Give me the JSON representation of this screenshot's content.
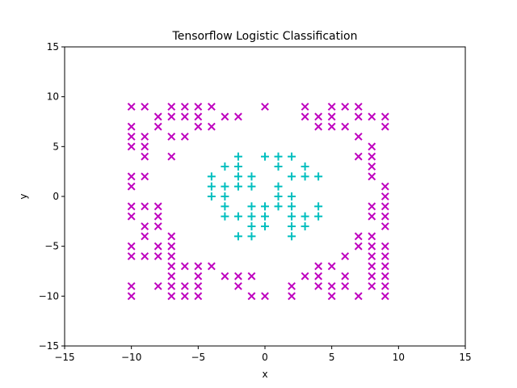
{
  "chart_data": {
    "type": "scatter",
    "title": "Tensorflow Logistic Classification",
    "xlabel": "x",
    "ylabel": "y",
    "xlim": [
      -15,
      15
    ],
    "ylim": [
      -15,
      15
    ],
    "xticks": [
      -15,
      -10,
      -5,
      0,
      5,
      10,
      15
    ],
    "yticks": [
      -15,
      -10,
      -5,
      0,
      5,
      10,
      15
    ],
    "xtick_labels": [
      "−15",
      "−10",
      "−5",
      "0",
      "5",
      "10",
      "15"
    ],
    "ytick_labels": [
      "−15",
      "−10",
      "−5",
      "0",
      "5",
      "10",
      "15"
    ],
    "grid": false,
    "series": [
      {
        "marker": "cross",
        "color": "#bf00bf",
        "points": [
          [
            -10,
            9
          ],
          [
            -9,
            9
          ],
          [
            -7,
            9
          ],
          [
            -6,
            9
          ],
          [
            -5,
            9
          ],
          [
            -4,
            9
          ],
          [
            0,
            9
          ],
          [
            3,
            9
          ],
          [
            5,
            9
          ],
          [
            6,
            9
          ],
          [
            7,
            9
          ],
          [
            -8,
            8
          ],
          [
            -7,
            8
          ],
          [
            -6,
            8
          ],
          [
            -5,
            8
          ],
          [
            -3,
            8
          ],
          [
            -2,
            8
          ],
          [
            3,
            8
          ],
          [
            4,
            8
          ],
          [
            5,
            8
          ],
          [
            7,
            8
          ],
          [
            8,
            8
          ],
          [
            9,
            8
          ],
          [
            -10,
            7
          ],
          [
            -8,
            7
          ],
          [
            -5,
            7
          ],
          [
            -4,
            7
          ],
          [
            4,
            7
          ],
          [
            5,
            7
          ],
          [
            6,
            7
          ],
          [
            9,
            7
          ],
          [
            -10,
            6
          ],
          [
            -9,
            6
          ],
          [
            -7,
            6
          ],
          [
            -6,
            6
          ],
          [
            7,
            6
          ],
          [
            -10,
            5
          ],
          [
            -9,
            5
          ],
          [
            8,
            5
          ],
          [
            -9,
            4
          ],
          [
            -7,
            4
          ],
          [
            7,
            4
          ],
          [
            8,
            4
          ],
          [
            8,
            3
          ],
          [
            8,
            2
          ],
          [
            -10,
            2
          ],
          [
            -9,
            2
          ],
          [
            -10,
            1
          ],
          [
            9,
            1
          ],
          [
            9,
            0
          ],
          [
            -10,
            -1
          ],
          [
            -9,
            -1
          ],
          [
            -8,
            -1
          ],
          [
            8,
            -1
          ],
          [
            9,
            -1
          ],
          [
            -10,
            -2
          ],
          [
            -8,
            -2
          ],
          [
            8,
            -2
          ],
          [
            9,
            -2
          ],
          [
            -9,
            -3
          ],
          [
            -8,
            -3
          ],
          [
            9,
            -3
          ],
          [
            -9,
            -4
          ],
          [
            -7,
            -4
          ],
          [
            7,
            -4
          ],
          [
            8,
            -4
          ],
          [
            -10,
            -5
          ],
          [
            -8,
            -5
          ],
          [
            -7,
            -5
          ],
          [
            7,
            -5
          ],
          [
            8,
            -5
          ],
          [
            9,
            -5
          ],
          [
            -10,
            -6
          ],
          [
            -9,
            -6
          ],
          [
            -8,
            -6
          ],
          [
            -7,
            -6
          ],
          [
            6,
            -6
          ],
          [
            8,
            -6
          ],
          [
            9,
            -6
          ],
          [
            -7,
            -7
          ],
          [
            -6,
            -7
          ],
          [
            -5,
            -7
          ],
          [
            -4,
            -7
          ],
          [
            4,
            -7
          ],
          [
            5,
            -7
          ],
          [
            8,
            -7
          ],
          [
            9,
            -7
          ],
          [
            -7,
            -8
          ],
          [
            -5,
            -8
          ],
          [
            -3,
            -8
          ],
          [
            -2,
            -8
          ],
          [
            -1,
            -8
          ],
          [
            3,
            -8
          ],
          [
            4,
            -8
          ],
          [
            6,
            -8
          ],
          [
            8,
            -8
          ],
          [
            9,
            -8
          ],
          [
            -10,
            -9
          ],
          [
            -8,
            -9
          ],
          [
            -7,
            -9
          ],
          [
            -6,
            -9
          ],
          [
            -5,
            -9
          ],
          [
            -2,
            -9
          ],
          [
            2,
            -9
          ],
          [
            4,
            -9
          ],
          [
            5,
            -9
          ],
          [
            6,
            -9
          ],
          [
            8,
            -9
          ],
          [
            9,
            -9
          ],
          [
            -10,
            -10
          ],
          [
            -7,
            -10
          ],
          [
            -6,
            -10
          ],
          [
            -5,
            -10
          ],
          [
            -1,
            -10
          ],
          [
            0,
            -10
          ],
          [
            2,
            -10
          ],
          [
            5,
            -10
          ],
          [
            7,
            -10
          ],
          [
            9,
            -10
          ]
        ]
      },
      {
        "marker": "plus",
        "color": "#00bfbf",
        "points": [
          [
            -2,
            4
          ],
          [
            0,
            4
          ],
          [
            1,
            4
          ],
          [
            2,
            4
          ],
          [
            -3,
            3
          ],
          [
            -2,
            3
          ],
          [
            1,
            3
          ],
          [
            3,
            3
          ],
          [
            -4,
            2
          ],
          [
            -2,
            2
          ],
          [
            -1,
            2
          ],
          [
            2,
            2
          ],
          [
            3,
            2
          ],
          [
            4,
            2
          ],
          [
            -4,
            1
          ],
          [
            -3,
            1
          ],
          [
            -2,
            1
          ],
          [
            -1,
            1
          ],
          [
            1,
            1
          ],
          [
            -4,
            0
          ],
          [
            -3,
            0
          ],
          [
            1,
            0
          ],
          [
            2,
            0
          ],
          [
            -3,
            -1
          ],
          [
            -1,
            -1
          ],
          [
            0,
            -1
          ],
          [
            1,
            -1
          ],
          [
            2,
            -1
          ],
          [
            4,
            -1
          ],
          [
            -3,
            -2
          ],
          [
            -2,
            -2
          ],
          [
            -1,
            -2
          ],
          [
            0,
            -2
          ],
          [
            2,
            -2
          ],
          [
            3,
            -2
          ],
          [
            4,
            -2
          ],
          [
            -1,
            -3
          ],
          [
            0,
            -3
          ],
          [
            2,
            -3
          ],
          [
            3,
            -3
          ],
          [
            -2,
            -4
          ],
          [
            -1,
            -4
          ],
          [
            2,
            -4
          ]
        ]
      }
    ]
  }
}
